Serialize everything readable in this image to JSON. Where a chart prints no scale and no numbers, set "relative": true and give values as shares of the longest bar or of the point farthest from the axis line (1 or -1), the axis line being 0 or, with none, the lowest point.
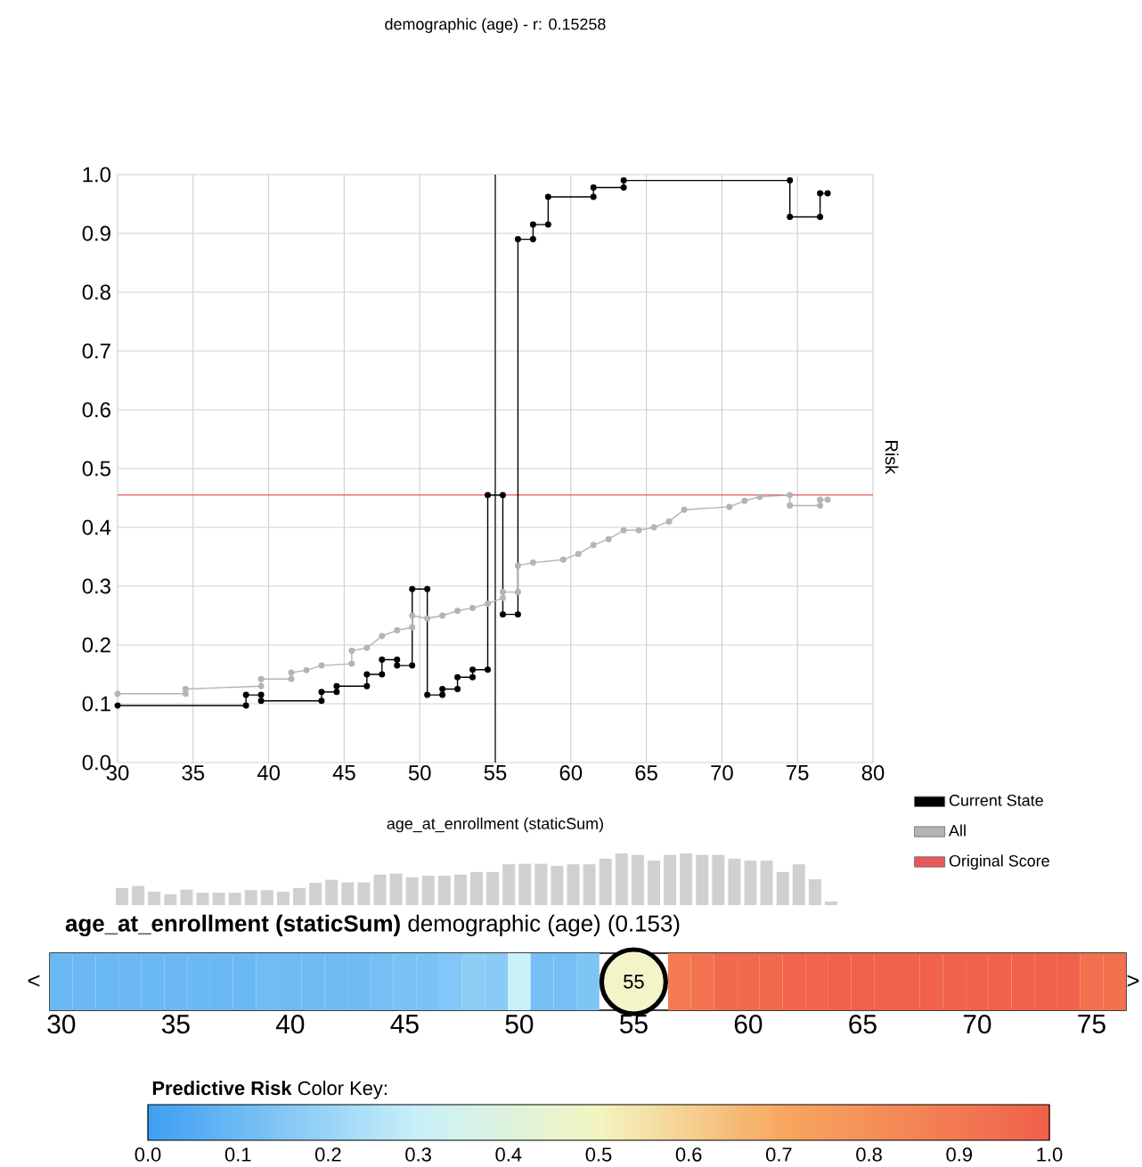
{
  "chart_data": [
    {
      "type": "line",
      "title": "demographic (age) - r: 0.15258",
      "xlabel": "age_at_enrollment (staticSum)",
      "ylabel": "Risk",
      "xlim": [
        30,
        80
      ],
      "xticks": [
        30,
        35,
        40,
        45,
        50,
        55,
        60,
        65,
        70,
        75,
        80
      ],
      "ylim": [
        0,
        1
      ],
      "yticks": [
        {
          "value": 0,
          "label": "0.0"
        },
        0.1,
        0.2,
        0.3,
        0.4,
        0.5,
        0.6,
        0.7,
        0.8,
        0.9,
        {
          "value": 1,
          "label": "1.0"
        }
      ],
      "grid": true,
      "legend": "bottom right",
      "marker": "circle",
      "line_style": "solid",
      "series": [
        {
          "name": "Current State",
          "color": "#000000",
          "x": [
            30,
            38.5,
            38.5,
            39.5,
            39.5,
            43.5,
            43.5,
            44.5,
            44.5,
            46.5,
            46.5,
            47.5,
            47.5,
            48.5,
            48.5,
            49.5,
            49.5,
            50.5,
            50.5,
            51.5,
            51.5,
            52.5,
            52.5,
            53.5,
            53.5,
            54.5,
            54.5,
            55.5,
            55.5,
            56.5,
            56.5,
            57.5,
            57.5,
            58.5,
            58.5,
            61.5,
            61.5,
            63.5,
            63.5,
            74.5,
            74.5,
            76.5,
            76.5,
            77
          ],
          "values": [
            0.097,
            0.097,
            0.115,
            0.115,
            0.105,
            0.105,
            0.12,
            0.12,
            0.13,
            0.13,
            0.15,
            0.15,
            0.175,
            0.175,
            0.165,
            0.165,
            0.295,
            0.295,
            0.115,
            0.115,
            0.125,
            0.125,
            0.145,
            0.145,
            0.158,
            0.158,
            0.455,
            0.455,
            0.252,
            0.252,
            0.89,
            0.89,
            0.915,
            0.915,
            0.962,
            0.962,
            0.978,
            0.978,
            0.99,
            0.99,
            0.928,
            0.928,
            0.968,
            0.968
          ]
        },
        {
          "name": "All",
          "color": "#b4b4b4",
          "x": [
            30,
            34.5,
            34.5,
            39.5,
            39.5,
            41.5,
            41.5,
            42.5,
            43.5,
            45.5,
            45.5,
            46.5,
            47.5,
            48.5,
            49.5,
            49.5,
            50.5,
            51.5,
            52.5,
            53.5,
            54.5,
            55.5,
            55.5,
            56.5,
            56.5,
            57.5,
            59.5,
            60.5,
            61.5,
            62.5,
            63.5,
            64.5,
            65.5,
            66.5,
            67.5,
            70.5,
            71.5,
            72.5,
            74.5,
            74.5,
            76.5,
            76.5,
            77
          ],
          "values": [
            0.117,
            0.117,
            0.125,
            0.13,
            0.142,
            0.142,
            0.153,
            0.157,
            0.165,
            0.168,
            0.19,
            0.195,
            0.215,
            0.225,
            0.23,
            0.25,
            0.245,
            0.25,
            0.258,
            0.263,
            0.27,
            0.28,
            0.29,
            0.29,
            0.335,
            0.34,
            0.345,
            0.355,
            0.37,
            0.38,
            0.395,
            0.395,
            0.4,
            0.41,
            0.43,
            0.435,
            0.445,
            0.452,
            0.455,
            0.437,
            0.437,
            0.447,
            0.447
          ]
        }
      ],
      "ref_lines": [
        {
          "axis": "x",
          "value": 55,
          "color": "#000000"
        },
        {
          "axis": "y",
          "value": 0.455,
          "label": "Original Score",
          "color": "#e8585a"
        }
      ]
    },
    {
      "type": "bar",
      "relative": true,
      "color": "#d0d0d0",
      "categories": [
        null,
        null,
        null,
        null,
        null,
        null,
        null,
        null,
        null,
        null,
        null,
        null,
        null,
        null,
        null,
        null,
        null,
        null,
        null,
        null,
        null,
        null,
        null,
        null,
        null,
        null,
        null,
        null,
        null,
        null,
        null,
        null,
        null,
        null,
        null,
        null,
        null,
        null,
        null,
        null,
        null,
        null,
        null,
        null,
        null
      ],
      "values": [
        0.33,
        0.37,
        0.26,
        0.21,
        0.3,
        0.24,
        0.24,
        0.24,
        0.29,
        0.29,
        0.26,
        0.33,
        0.43,
        0.49,
        0.44,
        0.44,
        0.59,
        0.61,
        0.54,
        0.57,
        0.57,
        0.59,
        0.64,
        0.64,
        0.79,
        0.8,
        0.8,
        0.76,
        0.79,
        0.79,
        0.9,
        1,
        0.97,
        0.86,
        0.97,
        1,
        0.97,
        0.97,
        0.9,
        0.86,
        0.86,
        0.64,
        0.79,
        0.5,
        0.07
      ]
    },
    {
      "type": "heatmap",
      "title": "**age_at_enrollment (staticSum)** demographic (age) (0.153)",
      "clabel": "**Predictive Risk** Color Key:",
      "categories": [
        "30",
        null,
        null,
        null,
        null,
        "35",
        null,
        null,
        null,
        null,
        "40",
        null,
        null,
        null,
        null,
        "45",
        null,
        null,
        null,
        null,
        "50",
        null,
        null,
        null,
        null,
        "55",
        null,
        null,
        null,
        null,
        "60",
        null,
        null,
        null,
        null,
        "65",
        null,
        null,
        null,
        null,
        "70",
        null,
        null,
        null,
        null,
        "75",
        null
      ],
      "y_categories": [
        null
      ],
      "cells": [
        [
          0.1,
          0.1,
          0.1,
          0.1,
          0.1,
          0.1,
          0.1,
          0.1,
          0.1,
          0.11,
          0.105,
          0.105,
          0.105,
          0.105,
          0.12,
          0.13,
          0.13,
          0.15,
          0.17,
          0.165,
          0.3,
          0.12,
          0.12,
          0.14,
          null,
          null,
          null,
          0.89,
          0.92,
          0.96,
          0.96,
          0.96,
          0.98,
          0.98,
          0.99,
          0.99,
          0.99,
          0.99,
          0.99,
          0.99,
          0.99,
          0.99,
          0.99,
          0.99,
          0.99,
          0.93,
          0.93
        ]
      ],
      "clim": [
        0,
        1
      ],
      "cticks": [
        {
          "value": 0,
          "label": "0.0"
        },
        0.1,
        0.2,
        0.3,
        0.4,
        0.5,
        0.6,
        0.7,
        0.8,
        0.9,
        {
          "value": 1,
          "label": "1.0"
        }
      ],
      "annotations": [
        {
          "text": "55",
          "x": "55"
        },
        "<",
        ">"
      ]
    }
  ]
}
